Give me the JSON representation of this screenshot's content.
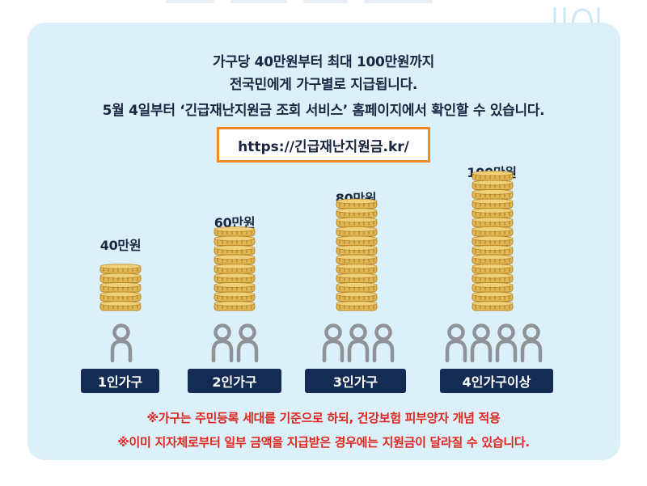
{
  "header": {
    "line1": "가구당 40만원부터 최대 100만원까지",
    "line2": "전국민에게 가구별로 지급됩니다.",
    "line3": "5월 4일부터 ‘긴급재난지원금 조회 서비스’ 홈페이지에서 확인할 수 있습니다."
  },
  "url": "https://긴급재난지원금.kr/",
  "groups": [
    {
      "amount": "40만원",
      "label": "1인가구",
      "coins": 5,
      "people": 1
    },
    {
      "amount": "60만원",
      "label": "2인가구",
      "coins": 9,
      "people": 2
    },
    {
      "amount": "80만원",
      "label": "3인가구",
      "coins": 12,
      "people": 3
    },
    {
      "amount": "100만원",
      "label": "4인가구이상",
      "coins": 15,
      "people": 4
    }
  ],
  "notes": {
    "note1": "※가구는 주민등록 세대를 기준으로 하되, 건강보험 피부양자 개념 적용",
    "note2": "※이미 지자체로부터 일부 금액을 지급받은 경우에는 지원금이 달라질 수 있습니다."
  },
  "colors": {
    "panel": "#dcf0fa",
    "url_border": "#f08a22",
    "tag": "#142c54",
    "note": "#e0261d",
    "coin": "#e0b552",
    "person": "#8f9297"
  },
  "icons": [
    "coin-stack-icon",
    "person-icon"
  ]
}
